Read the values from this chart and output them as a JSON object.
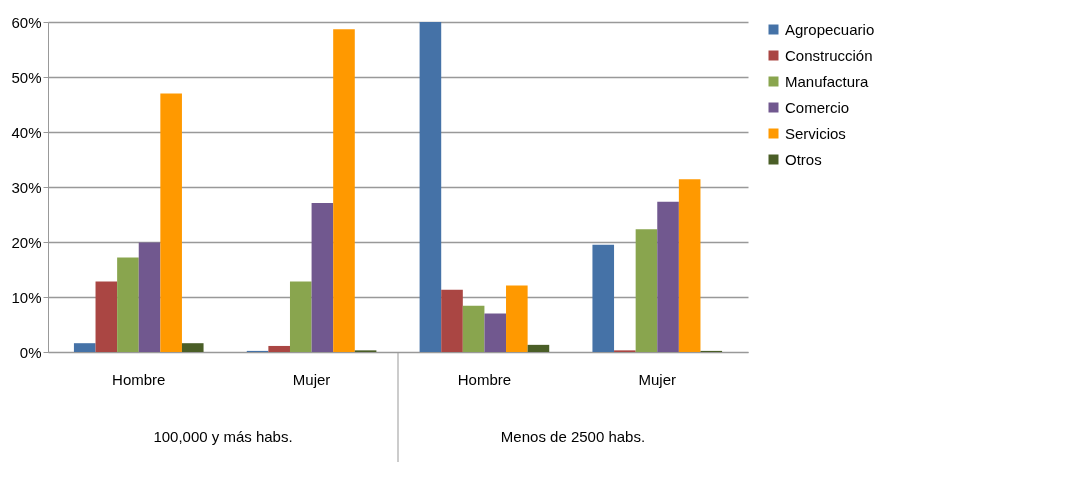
{
  "chart_data": {
    "type": "bar",
    "categories": [
      "Hombre",
      "Mujer",
      "Hombre",
      "Mujer"
    ],
    "annotations": [
      "100,000 y más habs.",
      "Menos de 2500 habs."
    ],
    "series": [
      {
        "name": "Agropecuario",
        "color": "#4572a7",
        "values": [
          1.6,
          0.2,
          60.0,
          19.5
        ]
      },
      {
        "name": "Construcción",
        "color": "#aa4643",
        "values": [
          12.8,
          1.1,
          11.3,
          0.3
        ]
      },
      {
        "name": "Manufactura",
        "color": "#89a54e",
        "values": [
          17.2,
          12.8,
          8.4,
          22.3
        ]
      },
      {
        "name": "Comercio",
        "color": "#71588f",
        "values": [
          19.9,
          27.1,
          7.0,
          27.3
        ]
      },
      {
        "name": "Servicios",
        "color": "#ff9900",
        "values": [
          47.0,
          58.7,
          12.1,
          31.4
        ]
      },
      {
        "name": "Otros",
        "color": "#4a5e27",
        "values": [
          1.6,
          0.3,
          1.3,
          0.2
        ]
      }
    ],
    "ylim": [
      0,
      60
    ],
    "yticks": [
      {
        "value": 0,
        "label": "0%"
      },
      {
        "value": 10,
        "label": "10%"
      },
      {
        "value": 20,
        "label": "20%"
      },
      {
        "value": 30,
        "label": "30%"
      },
      {
        "value": 40,
        "label": "40%"
      },
      {
        "value": 50,
        "label": "50%"
      },
      {
        "value": 60,
        "label": "60%"
      }
    ],
    "grid": "y",
    "legend": "right"
  }
}
